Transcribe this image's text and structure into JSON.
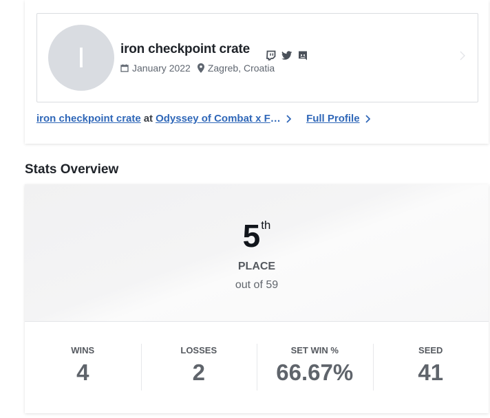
{
  "profile": {
    "avatar_initial": "I",
    "name": "iron checkpoint crate",
    "joined": "January 2022",
    "location": "Zagreb, Croatia",
    "social_icons": [
      "twitch-icon",
      "twitter-icon",
      "discord-icon"
    ]
  },
  "links": {
    "player_link": "iron checkpoint crate",
    "at_text": "at",
    "event_link": "Odyssey of Combat x Frontier",
    "full_profile": "Full Profile"
  },
  "stats_overview": {
    "title": "Stats Overview",
    "placement": "5",
    "placement_suffix": "th",
    "place_label": "PLACE",
    "out_of": "out of 59",
    "stats": [
      {
        "label": "WINS",
        "value": "4"
      },
      {
        "label": "LOSSES",
        "value": "2"
      },
      {
        "label": "SET WIN %",
        "value": "66.67%"
      },
      {
        "label": "SEED",
        "value": "41"
      }
    ]
  },
  "colors": {
    "link": "#2f67b8",
    "avatar_bg": "#d9dce1",
    "stat_value": "#5f646b"
  }
}
